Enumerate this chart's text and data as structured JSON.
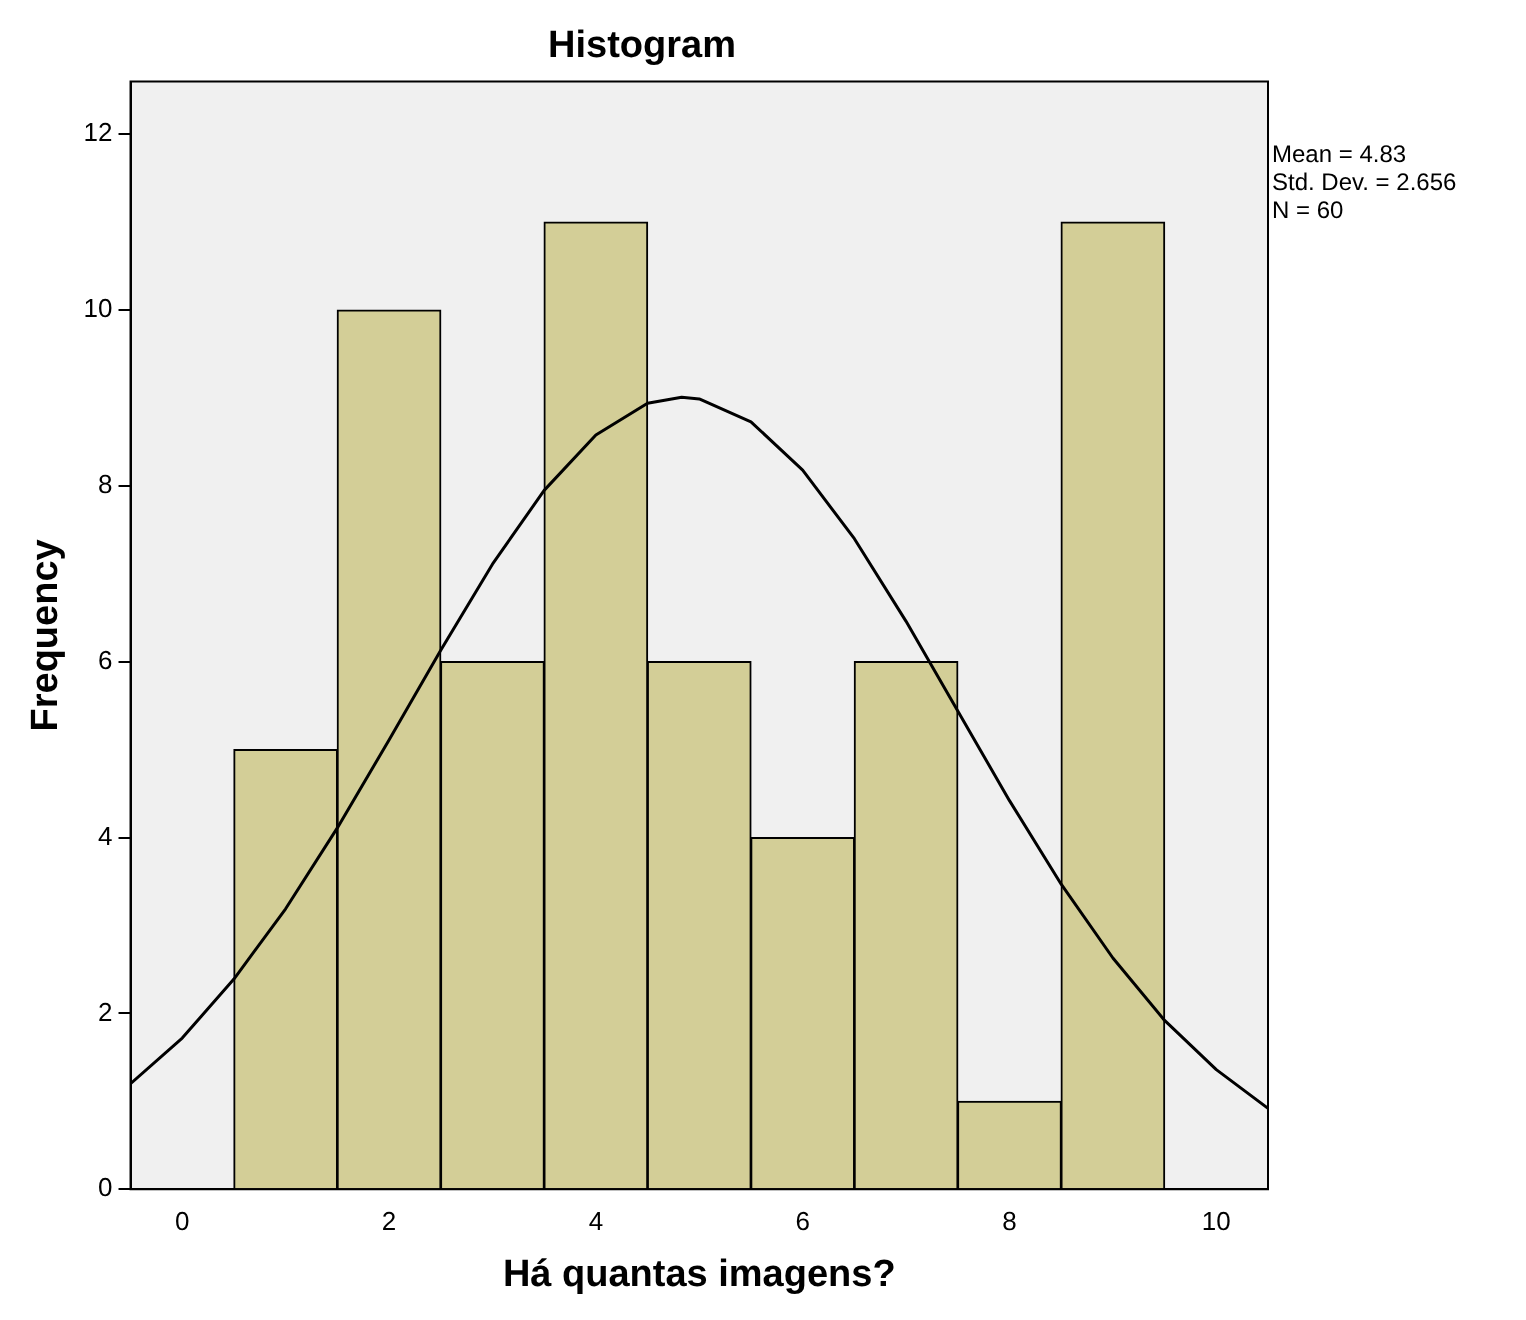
{
  "chart_data": {
    "type": "histogram",
    "title": "Histogram",
    "xlabel": "Há quantas imagens?",
    "ylabel": "Frequency",
    "bins": [
      0.5,
      1.5,
      2.5,
      3.5,
      4.5,
      5.5,
      6.5,
      7.5,
      8.5,
      9.5
    ],
    "values": [
      5,
      10,
      6,
      11,
      6,
      4,
      6,
      1,
      11
    ],
    "color": "#d3ce97",
    "series": [
      {
        "type": "line",
        "color": "#000000",
        "x": [
          -0.5,
          0,
          0.5,
          1,
          1.5,
          2,
          2.5,
          3,
          3.5,
          4,
          4.5,
          4.83,
          5,
          5.5,
          6,
          6.5,
          7,
          7.5,
          8,
          8.5,
          9,
          9.5,
          10,
          10.5
        ],
        "values": [
          1.2,
          1.72,
          2.39,
          3.19,
          4.11,
          5.11,
          6.13,
          7.11,
          7.95,
          8.58,
          8.94,
          9.01,
          8.99,
          8.73,
          8.18,
          7.4,
          6.46,
          5.44,
          4.42,
          3.47,
          2.63,
          1.92,
          1.36,
          0.92
        ]
      }
    ],
    "xlim": [
      -0.5,
      10.5
    ],
    "xticks": [
      0,
      2,
      4,
      6,
      8,
      10
    ],
    "ylim": [
      0,
      12.6
    ],
    "yticks": [
      0,
      2,
      4,
      6,
      8,
      10,
      12
    ],
    "annotations": [
      "Mean = 4.83",
      "Std. Dev. = 2.656",
      "N = 60"
    ],
    "grid": false,
    "legend": false,
    "marker": "none",
    "line_style": "solid"
  }
}
